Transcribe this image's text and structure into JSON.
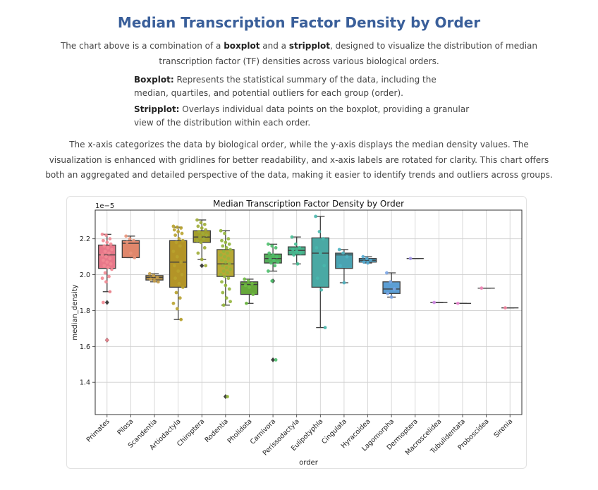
{
  "page": {
    "title": "Median Transcription Factor Density by Order",
    "intro_pre": "The chart above is a combination of a ",
    "intro_b1": "boxplot",
    "intro_mid": " and a ",
    "intro_b2": "stripplot",
    "intro_post": ", designed to visualize the distribution of median transcription factor (TF) densities across various biological orders.",
    "boxplot_label": "Boxplot:",
    "boxplot_text": " Represents the statistical summary of the data, including the median, quartiles, and potential outliers for each group (order).",
    "stripplot_label": "Stripplot:",
    "stripplot_text": " Overlays individual data points on the boxplot, providing a granular view of the distribution within each order.",
    "closing": "The x-axis categorizes the data by biological order, while the y-axis displays the median density values. The visualization is enhanced with gridlines for better readability, and x-axis labels are rotated for clarity. This chart offers both an aggregated and detailed perspective of the data, making it easier to identify trends and outliers across groups."
  },
  "chart_data": {
    "type": "box",
    "title": "Median Transcription Factor Density by Order",
    "xlabel": "order",
    "ylabel": "median_density",
    "y_scale_label": "1e−5",
    "ylim": [
      1.22,
      2.36
    ],
    "yticks": [
      1.4,
      1.6,
      1.8,
      2.0,
      2.2
    ],
    "grid": true,
    "categories": [
      "Primates",
      "Pilosa",
      "Scandentia",
      "Artiodactyla",
      "Chiroptera",
      "Rodentia",
      "Pholidota",
      "Carnivora",
      "Perissodactyla",
      "Eulipotyphla",
      "Cingulata",
      "Hyracoidea",
      "Lagomorpha",
      "Dermoptera",
      "Macroscelidea",
      "Tubulidentata",
      "Proboscidea",
      "Sirenia"
    ],
    "colors": [
      "#f28993",
      "#e8937a",
      "#c6a04b",
      "#b8a22e",
      "#9fac36",
      "#93b53c",
      "#6eba42",
      "#4cbf6b",
      "#45bc94",
      "#49b7ad",
      "#4db3c1",
      "#55acd4",
      "#7aa5e6",
      "#a599ea",
      "#d48de8",
      "#ec87d3",
      "#f085b6",
      "#f2839f"
    ],
    "box_colors": [
      "#e8788a",
      "#e0876c",
      "#b59049",
      "#b39427",
      "#a39d2c",
      "#b8a935",
      "#66a83a",
      "#54ae5a",
      "#4ab08a",
      "#4aa9a4",
      "#4aa3b2",
      "#4ea2c2",
      "#5c9ed4",
      "#8b8ed4",
      "#b97cd4",
      "#d77dc3",
      "#e07aa8",
      "#e87a92"
    ],
    "boxes": [
      {
        "q1": 2.035,
        "median": 2.11,
        "q3": 2.165,
        "wlow": 1.905,
        "whigh": 2.225,
        "fliers": [
          1.845,
          1.635
        ]
      },
      {
        "q1": 2.095,
        "median": 2.175,
        "q3": 2.19,
        "wlow": 2.095,
        "whigh": 2.215,
        "fliers": []
      },
      {
        "q1": 1.97,
        "median": 1.985,
        "q3": 1.995,
        "wlow": 1.96,
        "whigh": 2.005,
        "fliers": []
      },
      {
        "q1": 1.93,
        "median": 2.07,
        "q3": 2.19,
        "wlow": 1.75,
        "whigh": 2.265,
        "fliers": []
      },
      {
        "q1": 2.18,
        "median": 2.21,
        "q3": 2.245,
        "wlow": 2.085,
        "whigh": 2.305,
        "fliers": [
          2.05
        ]
      },
      {
        "q1": 1.99,
        "median": 2.06,
        "q3": 2.14,
        "wlow": 1.83,
        "whigh": 2.245,
        "fliers": [
          1.32
        ]
      },
      {
        "q1": 1.89,
        "median": 1.945,
        "q3": 1.96,
        "wlow": 1.84,
        "whigh": 1.975,
        "fliers": []
      },
      {
        "q1": 2.065,
        "median": 2.09,
        "q3": 2.115,
        "wlow": 2.02,
        "whigh": 2.17,
        "fliers": [
          1.965,
          1.525
        ]
      },
      {
        "q1": 2.11,
        "median": 2.135,
        "q3": 2.155,
        "wlow": 2.06,
        "whigh": 2.21,
        "fliers": []
      },
      {
        "q1": 1.93,
        "median": 2.12,
        "q3": 2.205,
        "wlow": 1.705,
        "whigh": 2.325,
        "fliers": []
      },
      {
        "q1": 2.035,
        "median": 2.11,
        "q3": 2.12,
        "wlow": 1.955,
        "whigh": 2.14,
        "fliers": []
      },
      {
        "q1": 2.07,
        "median": 2.08,
        "q3": 2.09,
        "wlow": 2.065,
        "whigh": 2.1,
        "fliers": []
      },
      {
        "q1": 1.895,
        "median": 1.92,
        "q3": 1.96,
        "wlow": 1.875,
        "whigh": 2.01,
        "fliers": []
      },
      {
        "q1": 2.09,
        "median": 2.09,
        "q3": 2.09,
        "wlow": 2.09,
        "whigh": 2.09,
        "fliers": []
      },
      {
        "q1": 1.845,
        "median": 1.845,
        "q3": 1.845,
        "wlow": 1.845,
        "whigh": 1.845,
        "fliers": []
      },
      {
        "q1": 1.84,
        "median": 1.84,
        "q3": 1.84,
        "wlow": 1.84,
        "whigh": 1.84,
        "fliers": []
      },
      {
        "q1": 1.925,
        "median": 1.925,
        "q3": 1.925,
        "wlow": 1.925,
        "whigh": 1.925,
        "fliers": []
      },
      {
        "q1": 1.815,
        "median": 1.815,
        "q3": 1.815,
        "wlow": 1.815,
        "whigh": 1.815,
        "fliers": []
      }
    ],
    "points": [
      [
        2.225,
        2.22,
        2.2,
        2.19,
        2.18,
        2.17,
        2.16,
        2.15,
        2.14,
        2.13,
        2.12,
        2.11,
        2.1,
        2.09,
        2.08,
        2.07,
        2.06,
        2.05,
        2.04,
        2.03,
        2.01,
        1.99,
        1.98,
        1.96,
        1.905,
        1.845,
        1.635
      ],
      [
        2.215,
        2.2,
        2.19,
        2.18,
        2.12,
        2.095
      ],
      [
        2.005,
        1.995,
        1.985,
        1.975,
        1.965,
        1.96
      ],
      [
        2.27,
        2.265,
        2.26,
        2.25,
        2.24,
        2.23,
        2.22,
        2.2,
        2.19,
        2.18,
        2.16,
        2.13,
        2.1,
        2.07,
        2.05,
        2.02,
        2.0,
        1.98,
        1.95,
        1.93,
        1.9,
        1.87,
        1.84,
        1.81,
        1.75
      ],
      [
        2.305,
        2.29,
        2.28,
        2.27,
        2.26,
        2.25,
        2.24,
        2.23,
        2.22,
        2.21,
        2.2,
        2.19,
        2.18,
        2.15,
        2.12,
        2.085,
        2.05
      ],
      [
        2.245,
        2.23,
        2.2,
        2.19,
        2.18,
        2.17,
        2.16,
        2.15,
        2.14,
        2.13,
        2.12,
        2.11,
        2.1,
        2.09,
        2.08,
        2.07,
        2.06,
        2.05,
        2.04,
        2.03,
        2.02,
        2.01,
        2.0,
        1.99,
        1.98,
        1.96,
        1.94,
        1.92,
        1.9,
        1.87,
        1.85,
        1.83,
        1.32
      ],
      [
        1.975,
        1.965,
        1.95,
        1.94,
        1.93,
        1.89,
        1.84
      ],
      [
        2.17,
        2.16,
        2.15,
        2.12,
        2.11,
        2.1,
        2.09,
        2.08,
        2.07,
        2.065,
        2.05,
        2.02,
        1.965,
        1.525
      ],
      [
        2.21,
        2.17,
        2.15,
        2.14,
        2.13,
        2.12,
        2.11,
        2.06
      ],
      [
        2.325,
        2.24,
        2.2,
        2.15,
        2.12,
        2.05,
        1.98,
        1.915,
        1.705
      ],
      [
        2.14,
        2.12,
        2.1,
        2.05,
        1.955
      ],
      [
        2.1,
        2.09,
        2.08,
        2.07,
        2.065
      ],
      [
        2.01,
        1.96,
        1.92,
        1.895,
        1.875
      ],
      [
        2.09
      ],
      [
        1.845
      ],
      [
        1.84
      ],
      [
        1.925
      ],
      [
        1.815
      ]
    ]
  }
}
